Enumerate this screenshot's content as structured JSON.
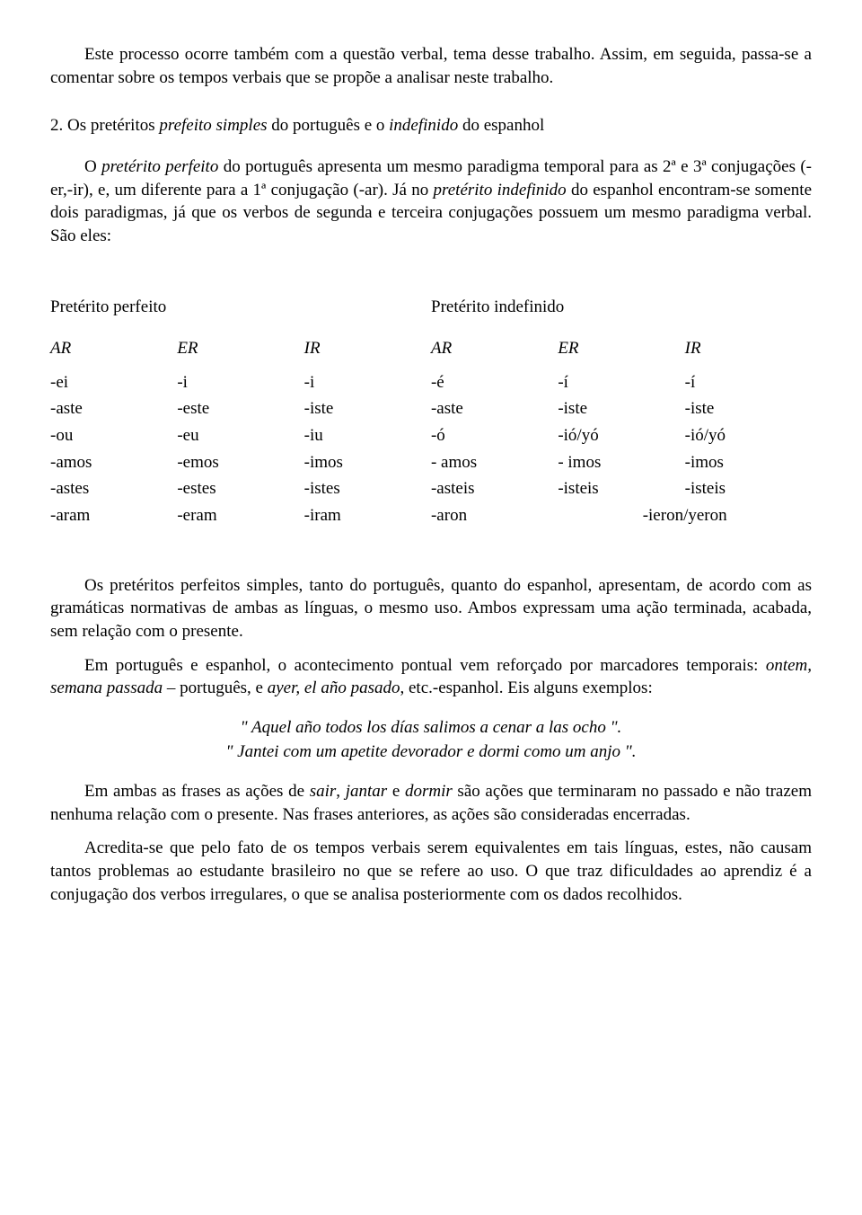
{
  "p1": "Este processo ocorre também com a questão verbal, tema desse trabalho. Assim, em seguida, passa-se a comentar sobre os tempos verbais que se propõe a analisar neste trabalho.",
  "heading": {
    "num": "2.",
    "pre": " Os pretéritos ",
    "i1": "prefeito simples",
    "mid": " do português e o ",
    "i2": "indefinido",
    "post": " do espanhol"
  },
  "p2": {
    "a": "O ",
    "i1": "pretérito perfeito",
    "b": " do português apresenta um mesmo paradigma temporal para as 2ª e 3ª conjugações (-er,-ir), e, um diferente para a 1ª conjugação (-ar). Já no ",
    "i2": "pretérito indefinido",
    "c": " do espanhol encontram-se somente dois paradigmas, já que os verbos de segunda e terceira conjugações possuem um mesmo paradigma verbal. São eles:"
  },
  "table": {
    "left_title": "Pretérito perfeito",
    "right_title": "Pretérito indefinido",
    "headers": [
      "AR",
      "ER",
      "IR",
      "AR",
      "ER",
      "IR"
    ],
    "rows": [
      [
        "-ei",
        "-i",
        "-i",
        "-é",
        "-í",
        "-í"
      ],
      [
        "-aste",
        "-este",
        "-iste",
        "-aste",
        "-iste",
        "-iste"
      ],
      [
        "-ou",
        "-eu",
        "-iu",
        "-ó",
        "-ió/yó",
        "-ió/yó"
      ],
      [
        "-amos",
        "-emos",
        "-imos",
        "- amos",
        "- imos",
        "-imos"
      ],
      [
        "-astes",
        "-estes",
        "-istes",
        "-asteis",
        "-isteis",
        "-isteis"
      ],
      [
        "-aram",
        "-eram",
        "-iram",
        "-aron",
        "-ieron/yeron",
        ""
      ]
    ]
  },
  "p3": "Os pretéritos perfeitos simples, tanto do português, quanto do espanhol, apresentam, de acordo com as gramáticas normativas de ambas as línguas, o mesmo uso. Ambos expressam uma ação terminada, acabada, sem relação com o presente.",
  "p4": {
    "a": "Em português e espanhol, o acontecimento pontual vem reforçado por marcadores temporais: ",
    "i1": "ontem, semana passada",
    "b": " – português, e ",
    "i2": "ayer, el año pasado",
    "c": ", etc.-espanhol. Eis alguns exemplos:"
  },
  "ex1": "\" Aquel año todos los días salimos a cenar a las ocho \".",
  "ex2": "\" Jantei com um apetite devorador e dormi como um anjo \".",
  "p5": {
    "a": "Em ambas as frases as ações de ",
    "i1": "sair",
    "b": ", ",
    "i2": "jantar",
    "c": " e ",
    "i3": "dormir",
    "d": " são ações que terminaram no passado e não trazem nenhuma relação com o presente. Nas frases anteriores, as ações são consideradas encerradas."
  },
  "p6": "Acredita-se que pelo fato de os tempos verbais serem equivalentes em tais línguas, estes, não causam tantos problemas ao estudante brasileiro no que se refere ao uso. O que traz dificuldades ao aprendiz é a conjugação dos verbos irregulares, o que se analisa posteriormente com os dados recolhidos."
}
